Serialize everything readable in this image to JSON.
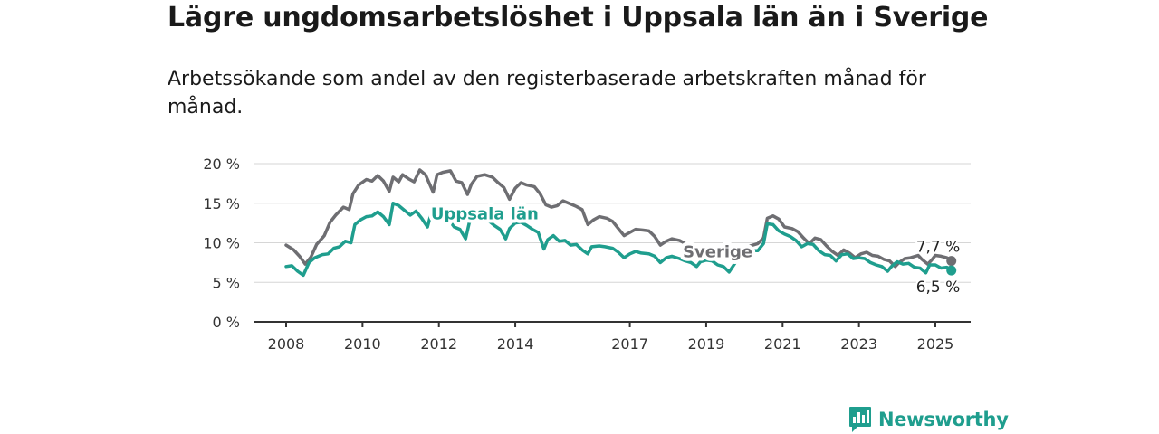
{
  "title": "Lägre ungdomsarbetslöshet i Uppsala län än i Sverige",
  "subtitle": "Arbetssökande som andel av den registerbaserade arbetskraften månad för månad.",
  "brand": {
    "name": "Newsworthy",
    "color": "#1f9e8e"
  },
  "chart_data": {
    "type": "line",
    "ylim": [
      0,
      20
    ],
    "y_ticks": [
      {
        "value": 0,
        "label": "0 %"
      },
      {
        "value": 5,
        "label": "5 %"
      },
      {
        "value": 10,
        "label": "10 %"
      },
      {
        "value": 15,
        "label": "15 %"
      },
      {
        "value": 20,
        "label": "20 %"
      }
    ],
    "x_ticks": [
      {
        "value": 2008,
        "label": "2008"
      },
      {
        "value": 2010,
        "label": "2010"
      },
      {
        "value": 2012,
        "label": "2012"
      },
      {
        "value": 2014,
        "label": "2014"
      },
      {
        "value": 2017,
        "label": "2017"
      },
      {
        "value": 2019,
        "label": "2019"
      },
      {
        "value": 2021,
        "label": "2021"
      },
      {
        "value": 2023,
        "label": "2023"
      },
      {
        "value": 2025,
        "label": "2025"
      }
    ],
    "grid": true,
    "series": [
      {
        "name": "Sverige",
        "color": "#6e6e72",
        "end_label": "7,7 %",
        "points": [
          [
            2008.0,
            9.7
          ],
          [
            2008.2,
            9.1
          ],
          [
            2008.35,
            8.3
          ],
          [
            2008.5,
            7.3
          ],
          [
            2008.65,
            8.2
          ],
          [
            2008.8,
            9.8
          ],
          [
            2009.0,
            10.9
          ],
          [
            2009.15,
            12.6
          ],
          [
            2009.3,
            13.5
          ],
          [
            2009.5,
            14.5
          ],
          [
            2009.65,
            14.2
          ],
          [
            2009.75,
            16.2
          ],
          [
            2009.9,
            17.3
          ],
          [
            2010.1,
            18.0
          ],
          [
            2010.25,
            17.8
          ],
          [
            2010.4,
            18.5
          ],
          [
            2010.55,
            17.8
          ],
          [
            2010.7,
            16.5
          ],
          [
            2010.8,
            18.3
          ],
          [
            2010.95,
            17.7
          ],
          [
            2011.05,
            18.6
          ],
          [
            2011.2,
            18.1
          ],
          [
            2011.35,
            17.7
          ],
          [
            2011.5,
            19.2
          ],
          [
            2011.65,
            18.6
          ],
          [
            2011.85,
            16.4
          ],
          [
            2011.95,
            18.6
          ],
          [
            2012.1,
            18.9
          ],
          [
            2012.3,
            19.1
          ],
          [
            2012.45,
            17.8
          ],
          [
            2012.6,
            17.6
          ],
          [
            2012.75,
            16.1
          ],
          [
            2012.85,
            17.4
          ],
          [
            2013.0,
            18.4
          ],
          [
            2013.2,
            18.6
          ],
          [
            2013.4,
            18.3
          ],
          [
            2013.55,
            17.6
          ],
          [
            2013.7,
            17.0
          ],
          [
            2013.85,
            15.5
          ],
          [
            2014.0,
            16.9
          ],
          [
            2014.15,
            17.6
          ],
          [
            2014.3,
            17.3
          ],
          [
            2014.5,
            17.1
          ],
          [
            2014.65,
            16.2
          ],
          [
            2014.8,
            14.8
          ],
          [
            2014.95,
            14.5
          ],
          [
            2015.1,
            14.7
          ],
          [
            2015.25,
            15.3
          ],
          [
            2015.45,
            14.9
          ],
          [
            2015.6,
            14.6
          ],
          [
            2015.75,
            14.2
          ],
          [
            2015.9,
            12.3
          ],
          [
            2016.05,
            12.9
          ],
          [
            2016.2,
            13.3
          ],
          [
            2016.4,
            13.1
          ],
          [
            2016.55,
            12.7
          ],
          [
            2016.7,
            11.8
          ],
          [
            2016.85,
            10.9
          ],
          [
            2017.0,
            11.3
          ],
          [
            2017.15,
            11.7
          ],
          [
            2017.35,
            11.6
          ],
          [
            2017.5,
            11.5
          ],
          [
            2017.65,
            10.8
          ],
          [
            2017.8,
            9.7
          ],
          [
            2017.95,
            10.2
          ],
          [
            2018.1,
            10.5
          ],
          [
            2018.3,
            10.3
          ],
          [
            2018.45,
            9.9
          ],
          [
            2018.6,
            9.2
          ],
          [
            2018.75,
            8.3
          ],
          [
            2018.9,
            8.9
          ],
          [
            2019.05,
            9.0
          ],
          [
            2019.25,
            9.2
          ],
          [
            2019.4,
            8.8
          ],
          [
            2019.55,
            8.5
          ],
          [
            2019.7,
            8.0
          ],
          [
            2019.85,
            8.9
          ],
          [
            2020.0,
            9.2
          ],
          [
            2020.15,
            9.6
          ],
          [
            2020.35,
            9.9
          ],
          [
            2020.5,
            10.6
          ],
          [
            2020.6,
            13.1
          ],
          [
            2020.75,
            13.4
          ],
          [
            2020.9,
            13.0
          ],
          [
            2021.05,
            12.0
          ],
          [
            2021.25,
            11.8
          ],
          [
            2021.4,
            11.4
          ],
          [
            2021.55,
            10.6
          ],
          [
            2021.7,
            9.9
          ],
          [
            2021.85,
            10.6
          ],
          [
            2022.0,
            10.4
          ],
          [
            2022.15,
            9.6
          ],
          [
            2022.3,
            8.9
          ],
          [
            2022.45,
            8.4
          ],
          [
            2022.6,
            9.1
          ],
          [
            2022.75,
            8.7
          ],
          [
            2022.9,
            8.1
          ],
          [
            2023.05,
            8.6
          ],
          [
            2023.2,
            8.8
          ],
          [
            2023.35,
            8.4
          ],
          [
            2023.5,
            8.3
          ],
          [
            2023.65,
            7.9
          ],
          [
            2023.8,
            7.7
          ],
          [
            2023.95,
            7.0
          ],
          [
            2024.05,
            7.5
          ],
          [
            2024.2,
            8.0
          ],
          [
            2024.35,
            8.1
          ],
          [
            2024.55,
            8.4
          ],
          [
            2024.65,
            7.9
          ],
          [
            2024.8,
            7.3
          ],
          [
            2024.9,
            7.8
          ],
          [
            2025.0,
            8.4
          ],
          [
            2025.15,
            8.3
          ],
          [
            2025.3,
            8.1
          ],
          [
            2025.42,
            7.7
          ]
        ]
      },
      {
        "name": "Uppsala län",
        "color": "#1f9e8e",
        "end_label": "6,5 %",
        "points": [
          [
            2008.0,
            7.0
          ],
          [
            2008.15,
            7.1
          ],
          [
            2008.3,
            6.4
          ],
          [
            2008.45,
            5.9
          ],
          [
            2008.6,
            7.5
          ],
          [
            2008.75,
            8.1
          ],
          [
            2008.95,
            8.5
          ],
          [
            2009.1,
            8.6
          ],
          [
            2009.25,
            9.3
          ],
          [
            2009.4,
            9.5
          ],
          [
            2009.55,
            10.2
          ],
          [
            2009.7,
            10.0
          ],
          [
            2009.8,
            12.3
          ],
          [
            2009.95,
            12.9
          ],
          [
            2010.1,
            13.3
          ],
          [
            2010.25,
            13.4
          ],
          [
            2010.4,
            13.9
          ],
          [
            2010.55,
            13.3
          ],
          [
            2010.7,
            12.3
          ],
          [
            2010.8,
            15.0
          ],
          [
            2010.95,
            14.7
          ],
          [
            2011.1,
            14.1
          ],
          [
            2011.25,
            13.5
          ],
          [
            2011.4,
            14.0
          ],
          [
            2011.55,
            13.1
          ],
          [
            2011.7,
            12.0
          ],
          [
            2011.8,
            13.8
          ],
          [
            2011.95,
            13.8
          ],
          [
            2012.1,
            13.1
          ],
          [
            2012.25,
            13.0
          ],
          [
            2012.4,
            12.0
          ],
          [
            2012.55,
            11.7
          ],
          [
            2012.7,
            10.5
          ],
          [
            2012.8,
            12.6
          ],
          [
            2013.0,
            13.2
          ],
          [
            2013.15,
            13.2
          ],
          [
            2013.3,
            12.8
          ],
          [
            2013.45,
            12.2
          ],
          [
            2013.6,
            11.7
          ],
          [
            2013.75,
            10.5
          ],
          [
            2013.85,
            11.8
          ],
          [
            2014.0,
            12.5
          ],
          [
            2014.15,
            12.6
          ],
          [
            2014.3,
            12.2
          ],
          [
            2014.45,
            11.7
          ],
          [
            2014.6,
            11.3
          ],
          [
            2014.75,
            9.2
          ],
          [
            2014.85,
            10.4
          ],
          [
            2015.0,
            10.9
          ],
          [
            2015.15,
            10.2
          ],
          [
            2015.3,
            10.3
          ],
          [
            2015.45,
            9.7
          ],
          [
            2015.6,
            9.8
          ],
          [
            2015.75,
            9.1
          ],
          [
            2015.9,
            8.6
          ],
          [
            2016.0,
            9.5
          ],
          [
            2016.2,
            9.6
          ],
          [
            2016.35,
            9.5
          ],
          [
            2016.55,
            9.3
          ],
          [
            2016.7,
            8.8
          ],
          [
            2016.85,
            8.1
          ],
          [
            2017.0,
            8.6
          ],
          [
            2017.15,
            8.9
          ],
          [
            2017.3,
            8.7
          ],
          [
            2017.5,
            8.6
          ],
          [
            2017.65,
            8.3
          ],
          [
            2017.8,
            7.5
          ],
          [
            2017.95,
            8.1
          ],
          [
            2018.1,
            8.3
          ],
          [
            2018.3,
            8.0
          ],
          [
            2018.45,
            7.7
          ],
          [
            2018.6,
            7.5
          ],
          [
            2018.75,
            7.0
          ],
          [
            2018.85,
            7.6
          ],
          [
            2019.0,
            7.8
          ],
          [
            2019.15,
            7.7
          ],
          [
            2019.3,
            7.2
          ],
          [
            2019.45,
            7.0
          ],
          [
            2019.6,
            6.3
          ],
          [
            2019.75,
            7.4
          ],
          [
            2019.9,
            8.5
          ],
          [
            2020.05,
            8.9
          ],
          [
            2020.2,
            9.0
          ],
          [
            2020.35,
            9.0
          ],
          [
            2020.5,
            9.9
          ],
          [
            2020.6,
            12.4
          ],
          [
            2020.75,
            12.3
          ],
          [
            2020.9,
            11.5
          ],
          [
            2021.05,
            11.1
          ],
          [
            2021.2,
            10.8
          ],
          [
            2021.35,
            10.3
          ],
          [
            2021.5,
            9.5
          ],
          [
            2021.65,
            9.9
          ],
          [
            2021.8,
            9.8
          ],
          [
            2021.95,
            9.0
          ],
          [
            2022.1,
            8.5
          ],
          [
            2022.25,
            8.4
          ],
          [
            2022.4,
            7.7
          ],
          [
            2022.55,
            8.5
          ],
          [
            2022.7,
            8.6
          ],
          [
            2022.85,
            8.0
          ],
          [
            2023.0,
            8.1
          ],
          [
            2023.15,
            8.0
          ],
          [
            2023.3,
            7.5
          ],
          [
            2023.45,
            7.2
          ],
          [
            2023.6,
            7.0
          ],
          [
            2023.75,
            6.4
          ],
          [
            2023.85,
            7.0
          ],
          [
            2024.0,
            7.6
          ],
          [
            2024.15,
            7.3
          ],
          [
            2024.3,
            7.4
          ],
          [
            2024.45,
            6.9
          ],
          [
            2024.6,
            6.8
          ],
          [
            2024.75,
            6.2
          ],
          [
            2024.85,
            7.2
          ],
          [
            2025.0,
            7.2
          ],
          [
            2025.15,
            6.8
          ],
          [
            2025.3,
            6.9
          ],
          [
            2025.42,
            6.5
          ]
        ]
      }
    ],
    "annotations": [
      {
        "text": "Uppsala län",
        "series": "Uppsala län",
        "at": [
          2013.2,
          13.0
        ]
      },
      {
        "text": "Sverige",
        "series": "Sverige",
        "at": [
          2019.3,
          8.2
        ]
      }
    ]
  }
}
